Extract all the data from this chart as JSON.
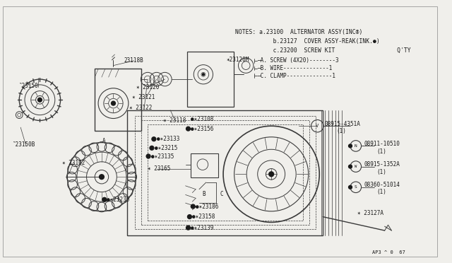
{
  "bg_color": "#f0efeb",
  "line_color": "#3a3a3a",
  "text_color": "#1a1a1a",
  "notes_lines": [
    "NOTES: a.23100  ALTERNATOR ASSY(INC®)",
    "           b.23127  COVER ASSY-REAK(INK.●)",
    "           c.23200  SCREW KIT                  Q'TY"
  ],
  "kit_lines": [
    "    ─A. SCREW (4X20)--------3",
    "    ─B. WIRE--------------1",
    "    ─C. CLAMP--------------1"
  ],
  "fig_width": 6.4,
  "fig_height": 3.72,
  "dpi": 100
}
